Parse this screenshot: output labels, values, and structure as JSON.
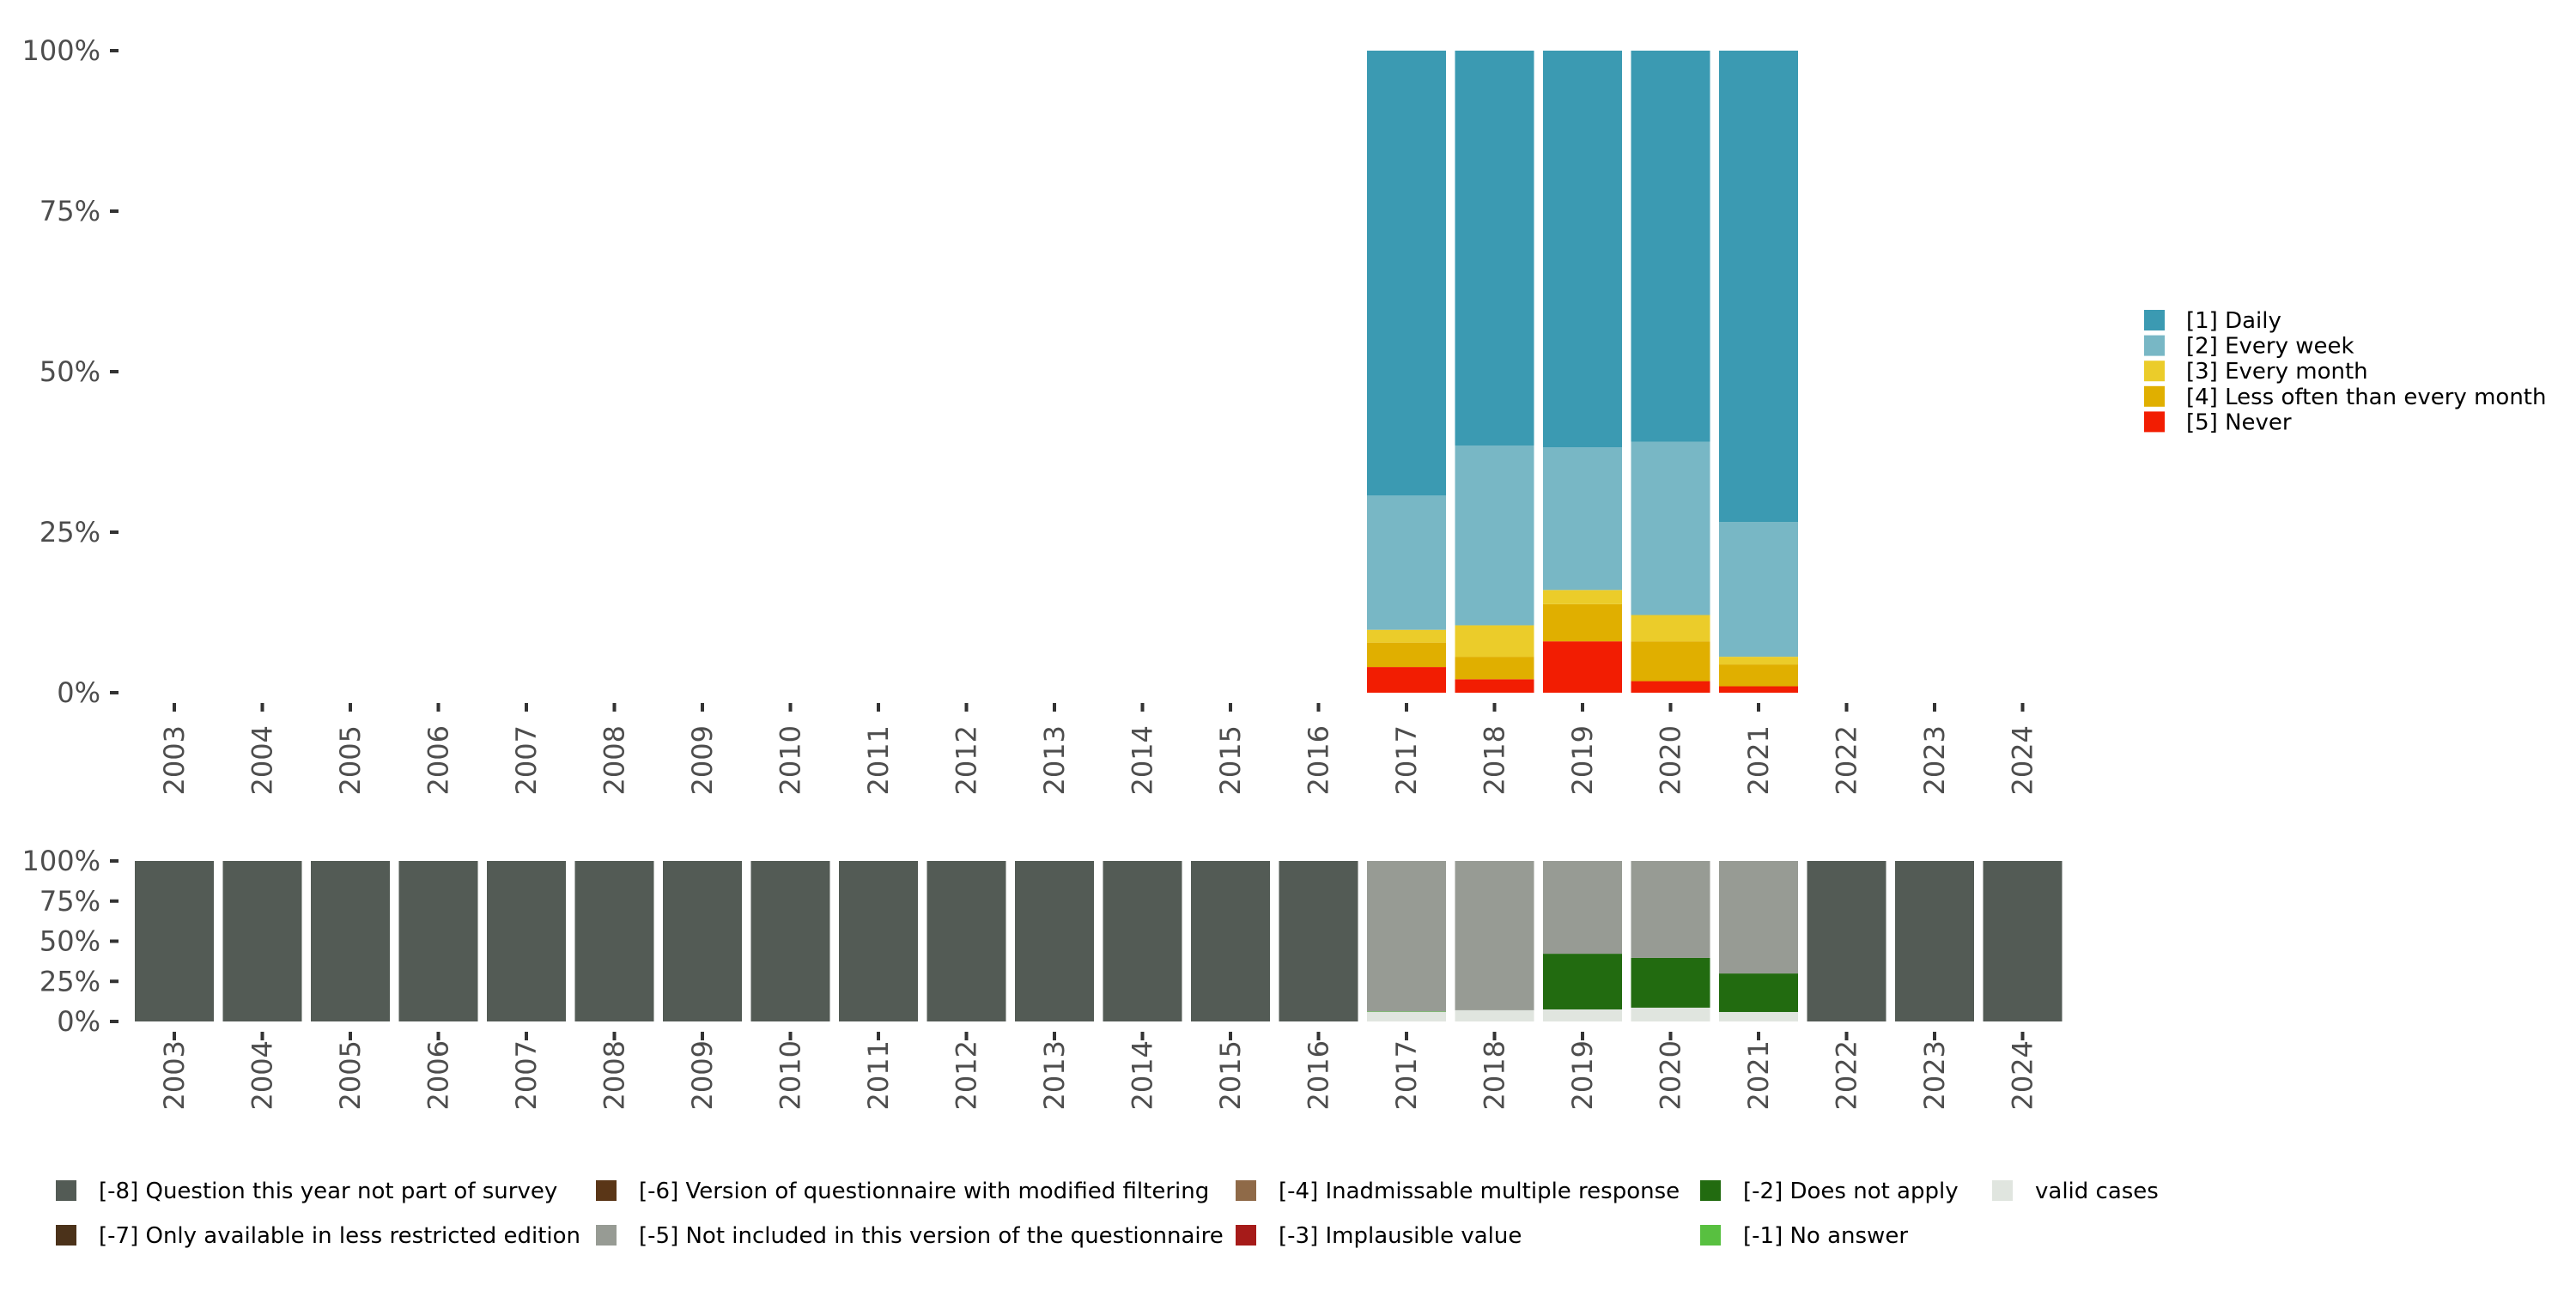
{
  "chart_data": [
    {
      "type": "bar",
      "stacked": true,
      "title": "",
      "xlabel": "",
      "ylabel": "",
      "ylim": [
        0,
        100
      ],
      "y_ticks": [
        "0%",
        "25%",
        "50%",
        "75%",
        "100%"
      ],
      "categories": [
        "2003",
        "2004",
        "2005",
        "2006",
        "2007",
        "2008",
        "2009",
        "2010",
        "2011",
        "2012",
        "2013",
        "2014",
        "2015",
        "2016",
        "2017",
        "2018",
        "2019",
        "2020",
        "2021",
        "2022",
        "2023",
        "2024"
      ],
      "legend_position": "right",
      "series": [
        {
          "name": "[5] Never",
          "color": "#f21d02",
          "values": [
            0,
            0,
            0,
            0,
            0,
            0,
            0,
            0,
            0,
            0,
            0,
            0,
            0,
            0,
            4.0,
            2.1,
            8.0,
            1.8,
            1.0,
            0,
            0,
            0
          ]
        },
        {
          "name": "[4] Less often than every month",
          "color": "#e0af00",
          "values": [
            0,
            0,
            0,
            0,
            0,
            0,
            0,
            0,
            0,
            0,
            0,
            0,
            0,
            0,
            3.8,
            3.5,
            5.8,
            6.2,
            3.4,
            0,
            0,
            0
          ]
        },
        {
          "name": "[3] Every month",
          "color": "#ebcc2a",
          "values": [
            0,
            0,
            0,
            0,
            0,
            0,
            0,
            0,
            0,
            0,
            0,
            0,
            0,
            0,
            2.0,
            4.9,
            2.2,
            4.1,
            1.2,
            0,
            0,
            0
          ]
        },
        {
          "name": "[2] Every week",
          "color": "#78b7c5",
          "values": [
            0,
            0,
            0,
            0,
            0,
            0,
            0,
            0,
            0,
            0,
            0,
            0,
            0,
            0,
            20.9,
            28.0,
            22.2,
            27.0,
            21.0,
            0,
            0,
            0
          ]
        },
        {
          "name": "[1] Daily",
          "color": "#3b9ab2",
          "values": [
            0,
            0,
            0,
            0,
            0,
            0,
            0,
            0,
            0,
            0,
            0,
            0,
            0,
            0,
            69.3,
            61.5,
            61.8,
            60.9,
            73.4,
            0,
            0,
            0
          ]
        }
      ],
      "legend_order": [
        4,
        3,
        2,
        1,
        0
      ]
    },
    {
      "type": "bar",
      "stacked": true,
      "title": "",
      "xlabel": "",
      "ylabel": "",
      "ylim": [
        0,
        100
      ],
      "y_ticks": [
        "0%",
        "25%",
        "50%",
        "75%",
        "100%"
      ],
      "categories": [
        "2003",
        "2004",
        "2005",
        "2006",
        "2007",
        "2008",
        "2009",
        "2010",
        "2011",
        "2012",
        "2013",
        "2014",
        "2015",
        "2016",
        "2017",
        "2018",
        "2019",
        "2020",
        "2021",
        "2022",
        "2023",
        "2024"
      ],
      "legend_position": "bottom",
      "series": [
        {
          "name": "valid cases",
          "color": "#e0e5df",
          "values": [
            0,
            0,
            0,
            0,
            0,
            0,
            0,
            0,
            0,
            0,
            0,
            0,
            0,
            0,
            5.9,
            7.0,
            7.5,
            8.6,
            5.9,
            0,
            0,
            0
          ]
        },
        {
          "name": "[-1] No answer",
          "color": "#58c040",
          "values": [
            0,
            0,
            0,
            0,
            0,
            0,
            0,
            0,
            0,
            0,
            0,
            0,
            0,
            0,
            0.3,
            0,
            0,
            0,
            0,
            0,
            0,
            0
          ]
        },
        {
          "name": "[-2] Does not apply",
          "color": "#226b10",
          "values": [
            0,
            0,
            0,
            0,
            0,
            0,
            0,
            0,
            0,
            0,
            0,
            0,
            0,
            0,
            0,
            0,
            34.7,
            31.0,
            24.0,
            0,
            0,
            0
          ]
        },
        {
          "name": "[-3] Implausible value",
          "color": "#a61b19",
          "values": [
            0,
            0,
            0,
            0,
            0,
            0,
            0,
            0,
            0,
            0,
            0,
            0,
            0,
            0,
            0,
            0,
            0,
            0,
            0,
            0,
            0,
            0
          ]
        },
        {
          "name": "[-4] Inadmissable multiple response",
          "color": "#8f6a48",
          "values": [
            0,
            0,
            0,
            0,
            0,
            0,
            0,
            0,
            0,
            0,
            0,
            0,
            0,
            0,
            0,
            0,
            0,
            0,
            0,
            0,
            0,
            0
          ]
        },
        {
          "name": "[-5] Not included in this version of the questionnaire",
          "color": "#979b94",
          "values": [
            0,
            0,
            0,
            0,
            0,
            0,
            0,
            0,
            0,
            0,
            0,
            0,
            0,
            0,
            93.8,
            93.0,
            57.8,
            60.4,
            70.1,
            0,
            0,
            0
          ]
        },
        {
          "name": "[-6] Version of questionnaire with modified filtering",
          "color": "#5a3617",
          "values": [
            0,
            0,
            0,
            0,
            0,
            0,
            0,
            0,
            0,
            0,
            0,
            0,
            0,
            0,
            0,
            0,
            0,
            0,
            0,
            0,
            0,
            0
          ]
        },
        {
          "name": "[-7] Only available in less restricted edition",
          "color": "#4b321a",
          "values": [
            0,
            0,
            0,
            0,
            0,
            0,
            0,
            0,
            0,
            0,
            0,
            0,
            0,
            0,
            0,
            0,
            0,
            0,
            0,
            0,
            0,
            0
          ]
        },
        {
          "name": "[-8] Question this year not part of survey",
          "color": "#535b55",
          "values": [
            100,
            100,
            100,
            100,
            100,
            100,
            100,
            100,
            100,
            100,
            100,
            100,
            100,
            100,
            0,
            0,
            0,
            0,
            0,
            100,
            100,
            100
          ]
        }
      ],
      "legend_order": [
        8,
        6,
        4,
        2,
        0,
        7,
        5,
        3,
        1
      ]
    }
  ]
}
